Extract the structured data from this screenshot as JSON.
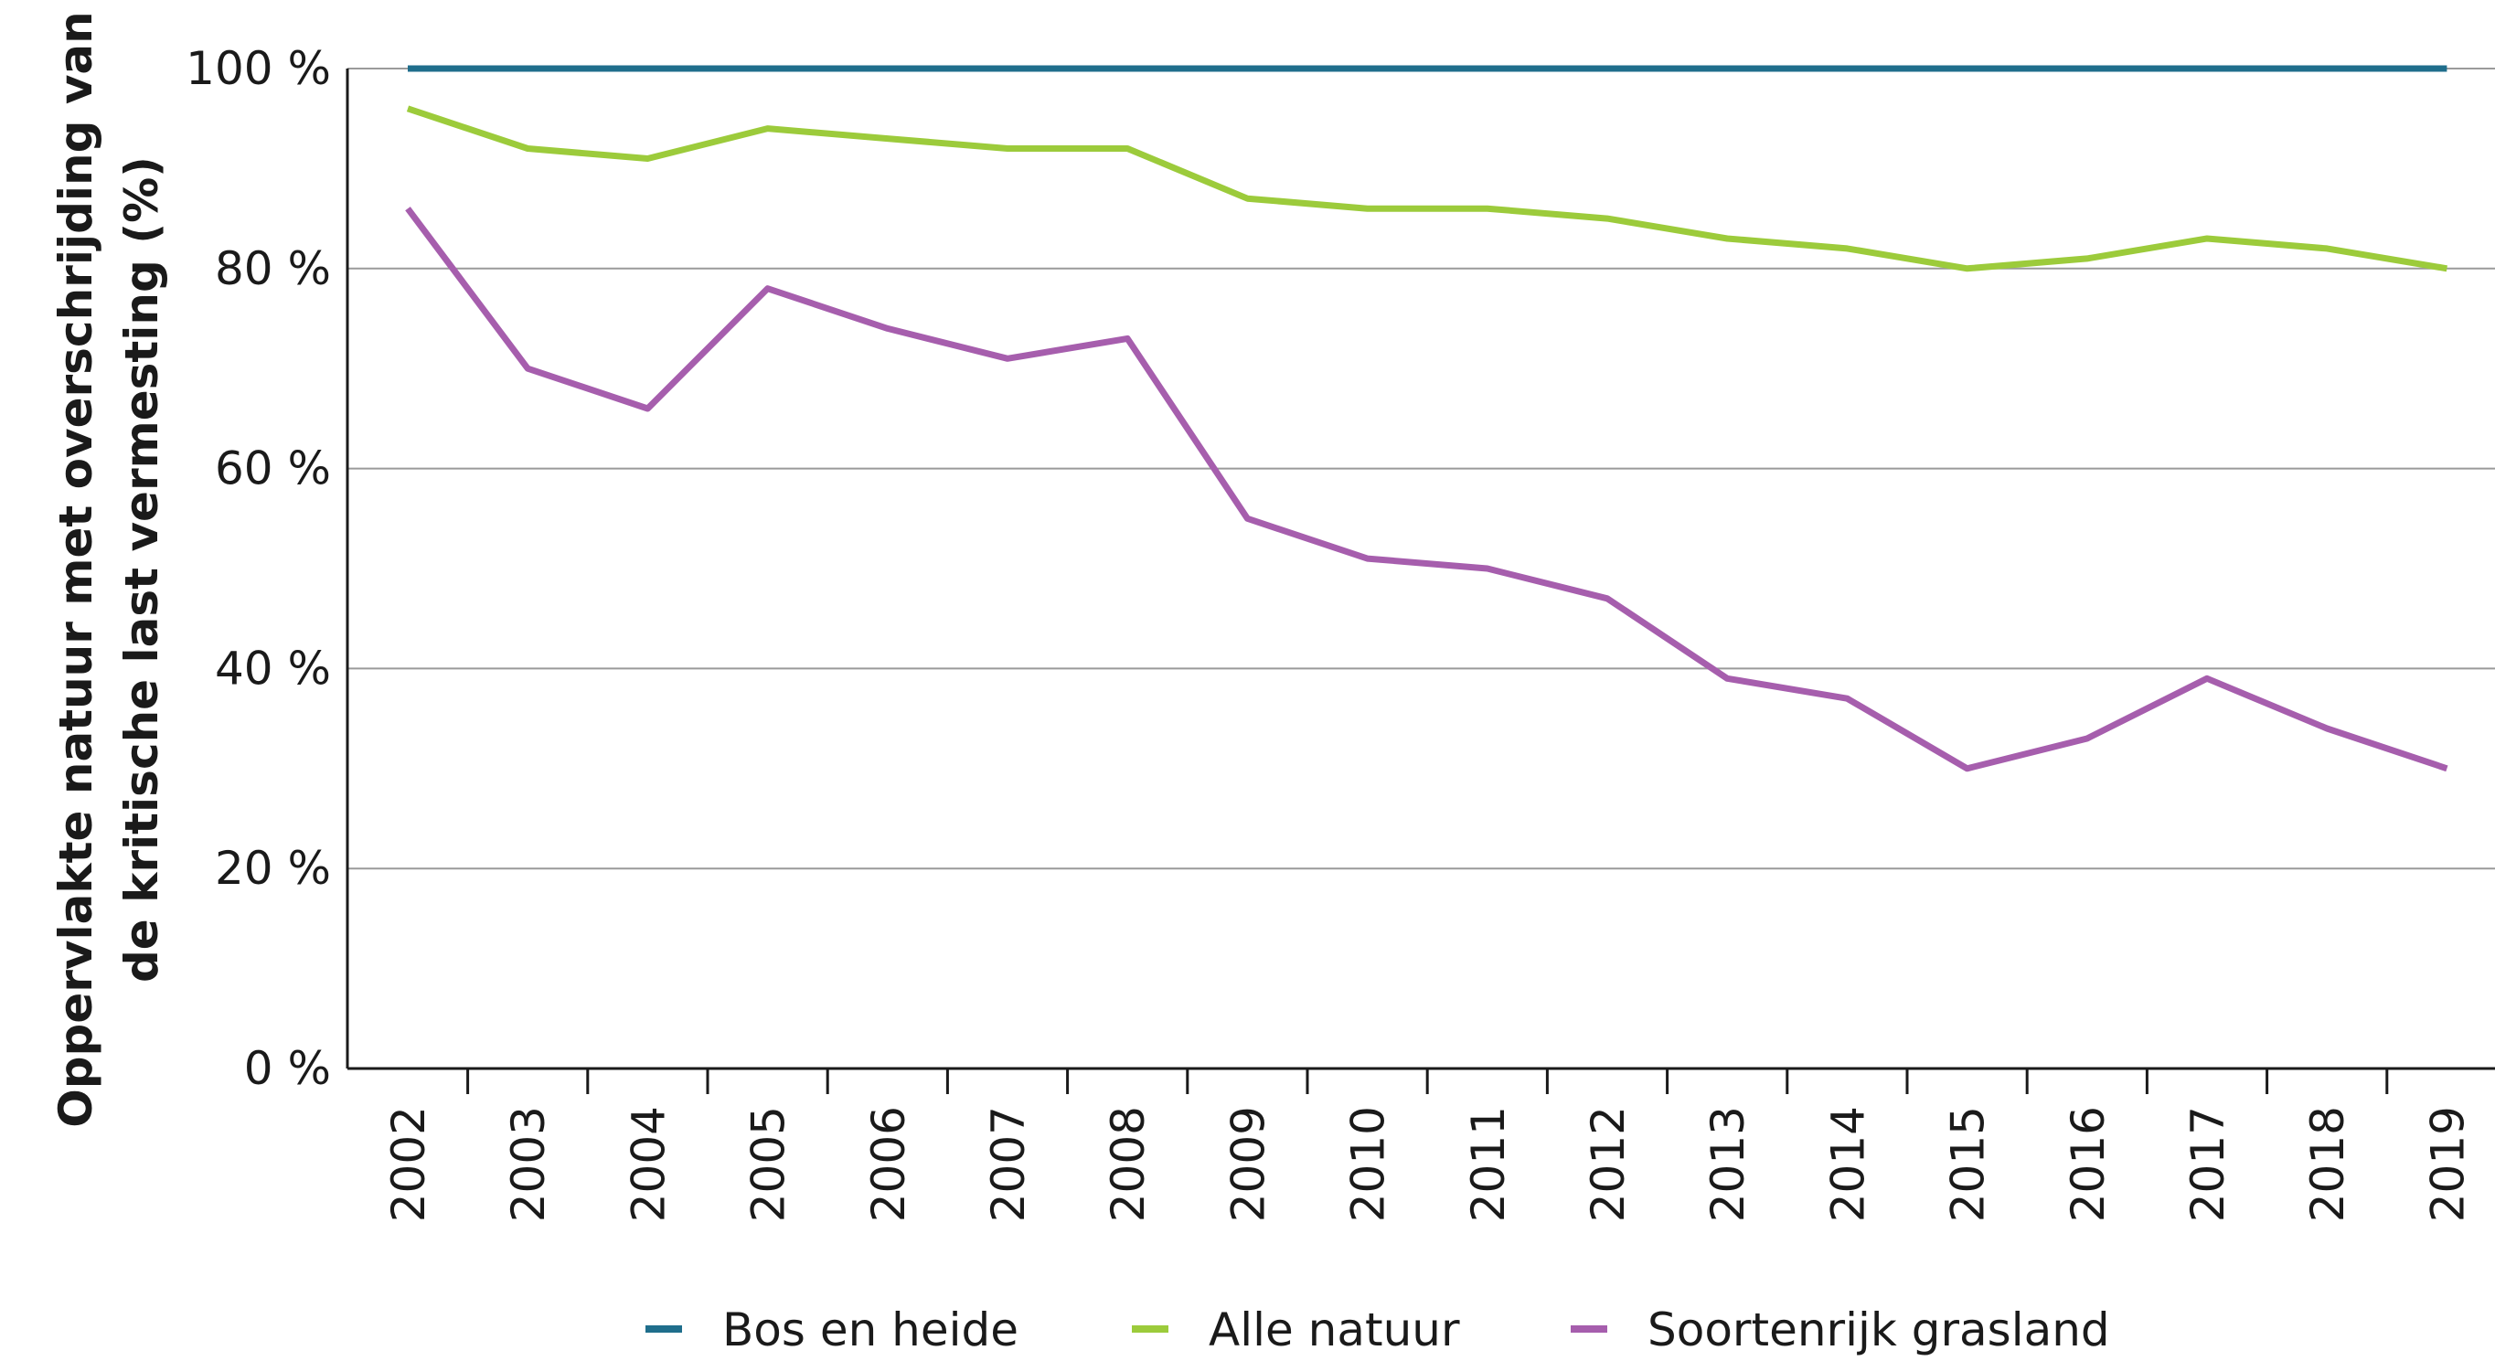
{
  "chart_data": {
    "type": "line",
    "title": "",
    "xlabel": "",
    "ylabel": [
      "Oppervlakte natuur met overschrijding van",
      "de kritische last vermesting (%)"
    ],
    "x": [
      "2002",
      "2003",
      "2004",
      "2005",
      "2006",
      "2007",
      "2008",
      "2009",
      "2010",
      "2011",
      "2012",
      "2013",
      "2014",
      "2015",
      "2016",
      "2017",
      "2018",
      "2019"
    ],
    "ylim": [
      0,
      100
    ],
    "yticks": [
      "0 %",
      "20 %",
      "40 %",
      "60 %",
      "80 %",
      "100 %"
    ],
    "ytick_values": [
      0,
      20,
      40,
      60,
      80,
      100
    ],
    "grid": true,
    "legend_position": "bottom",
    "series": [
      {
        "name": "Bos en heide",
        "color": "#1f6e8c",
        "values": [
          100,
          100,
          100,
          100,
          100,
          100,
          100,
          100,
          100,
          100,
          100,
          100,
          100,
          100,
          100,
          100,
          100,
          100
        ]
      },
      {
        "name": "Alle natuur",
        "color": "#9ccb3b",
        "values": [
          96,
          92,
          91,
          94,
          93,
          92,
          92,
          87,
          86,
          86,
          85,
          83,
          82,
          80,
          81,
          83,
          82,
          80
        ]
      },
      {
        "name": "Soortenrijk grasland",
        "color": "#a65ead",
        "values": [
          86,
          70,
          66,
          78,
          74,
          71,
          73,
          55,
          51,
          50,
          47,
          39,
          37,
          30,
          33,
          39,
          34,
          30
        ]
      }
    ]
  }
}
